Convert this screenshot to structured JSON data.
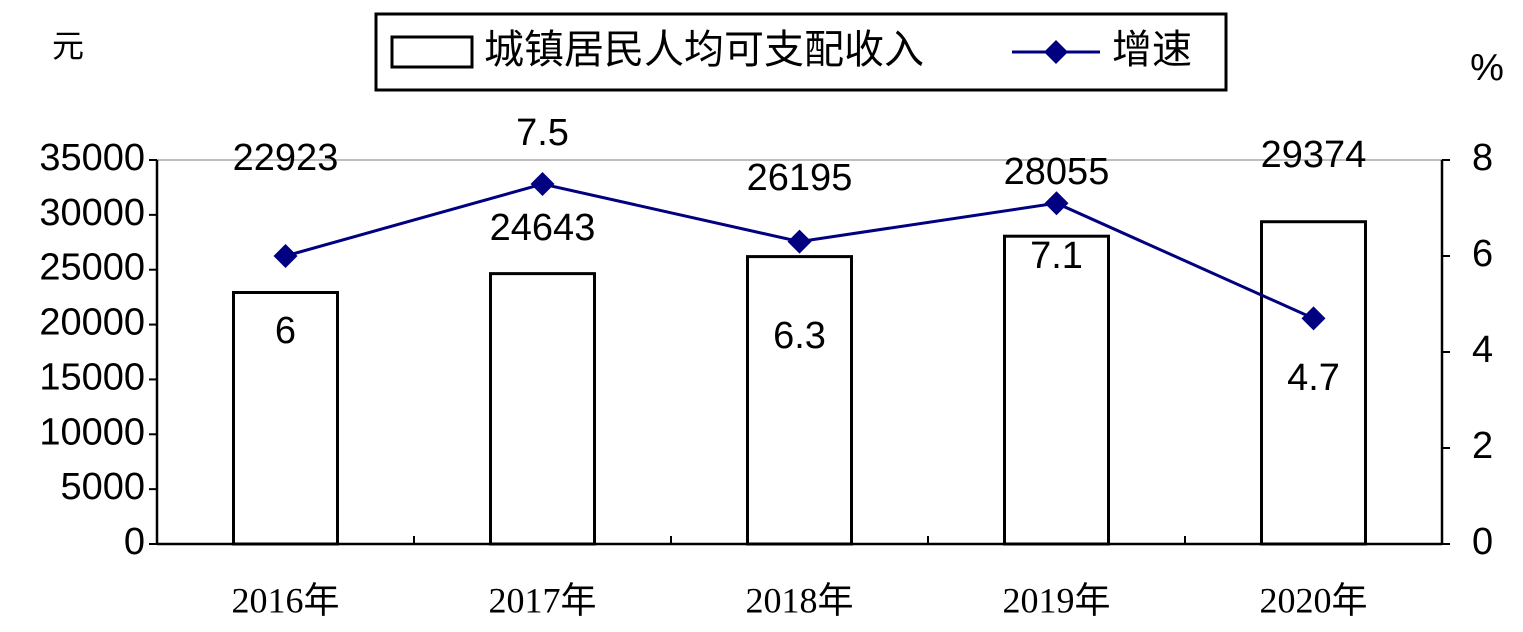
{
  "chart_data": {
    "type": "bar",
    "categories": [
      "2016年",
      "2017年",
      "2018年",
      "2019年",
      "2020年"
    ],
    "y_label": "元",
    "y2_label": "%",
    "series": [
      {
        "name": "城镇居民人均可支配收入",
        "type": "bar",
        "color": "#ffffff",
        "values": [
          22923,
          24643,
          26195,
          28055,
          29374
        ]
      },
      {
        "name": "增速",
        "type": "line",
        "axis": "y2",
        "color": "#000080",
        "values": [
          6,
          7.5,
          6.3,
          7.1,
          4.7
        ]
      }
    ],
    "ylim": [
      0,
      35000
    ],
    "yticks": [
      0,
      5000,
      10000,
      15000,
      20000,
      25000,
      30000,
      35000
    ],
    "y2lim": [
      0,
      8
    ],
    "y2ticks": [
      0,
      2,
      4,
      6,
      8
    ]
  }
}
